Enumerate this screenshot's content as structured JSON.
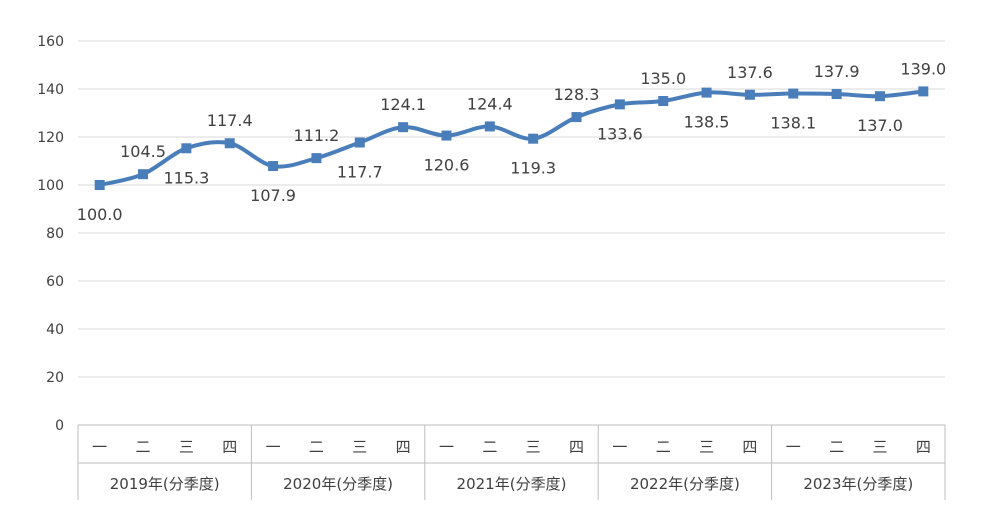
{
  "chart_data": {
    "type": "line",
    "title": "",
    "xlabel": "",
    "ylabel": "",
    "ylim": [
      0,
      160
    ],
    "yticks": [
      0,
      20,
      40,
      60,
      80,
      100,
      120,
      140,
      160
    ],
    "grid": true,
    "legend": "none",
    "categories": [
      "一",
      "二",
      "三",
      "四",
      "一",
      "二",
      "三",
      "四",
      "一",
      "二",
      "三",
      "四",
      "一",
      "二",
      "三",
      "四",
      "一",
      "二",
      "三",
      "四"
    ],
    "groups": [
      {
        "label": "2019年(分季度)",
        "count": 4
      },
      {
        "label": "2020年(分季度)",
        "count": 4
      },
      {
        "label": "2021年(分季度)",
        "count": 4
      },
      {
        "label": "2022年(分季度)",
        "count": 4
      },
      {
        "label": "2023年(分季度)",
        "count": 4
      }
    ],
    "series": [
      {
        "values": [
          100.0,
          104.5,
          115.3,
          117.4,
          107.9,
          111.2,
          117.7,
          124.1,
          120.6,
          124.4,
          119.3,
          128.3,
          133.6,
          135.0,
          138.5,
          137.6,
          138.1,
          137.9,
          137.0,
          139.0
        ],
        "labels": [
          "100.0",
          "104.5",
          "115.3",
          "117.4",
          "107.9",
          "111.2",
          "117.7",
          "124.1",
          "120.6",
          "124.4",
          "119.3",
          "128.3",
          "133.6",
          "135.0",
          "138.5",
          "137.6",
          "138.1",
          "137.9",
          "137.0",
          "139.0"
        ],
        "label_positions": [
          "below",
          "above",
          "below",
          "above",
          "below",
          "above",
          "below",
          "above",
          "below",
          "above",
          "below",
          "above",
          "below",
          "above",
          "below",
          "above",
          "below",
          "above",
          "below",
          "above"
        ],
        "color": "#4a7ebb"
      }
    ],
    "colors": {
      "line": "#4a7ebb",
      "grid": "#d9d9d9",
      "axis": "#bfbfbf",
      "text": "#404040"
    }
  }
}
